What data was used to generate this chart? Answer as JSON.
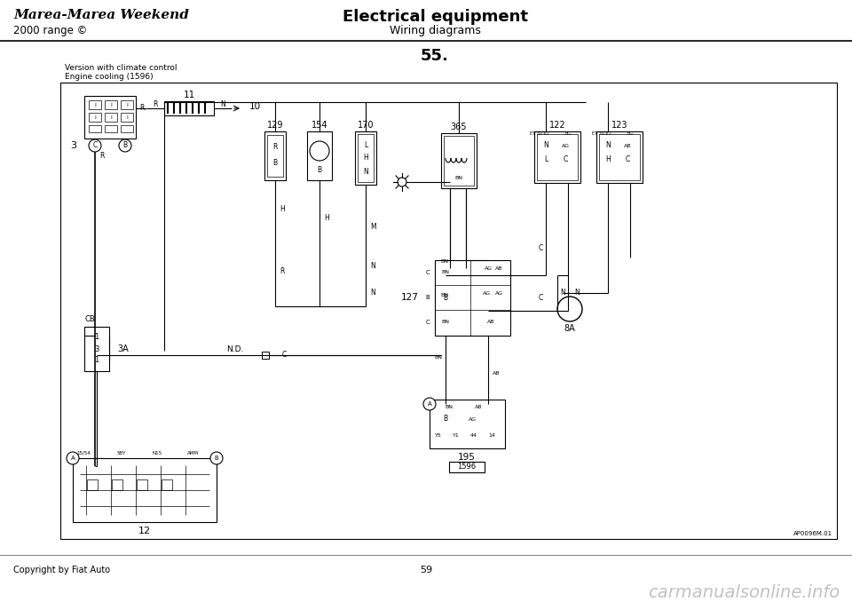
{
  "bg_color": "#ffffff",
  "title_left": "Marea-Marea Weekend",
  "title_center": "Electrical equipment",
  "subtitle_left": "2000 range ©",
  "subtitle_center": "Wiring diagrams",
  "page_number": "55.",
  "diagram_line1": "Version with climate control",
  "diagram_line2": "Engine cooling (1596)",
  "footer_left": "Copyright by Fiat Auto",
  "footer_center": "59",
  "watermark": "carmanualsonline.info",
  "diagram_ref": "AP0096M.01"
}
